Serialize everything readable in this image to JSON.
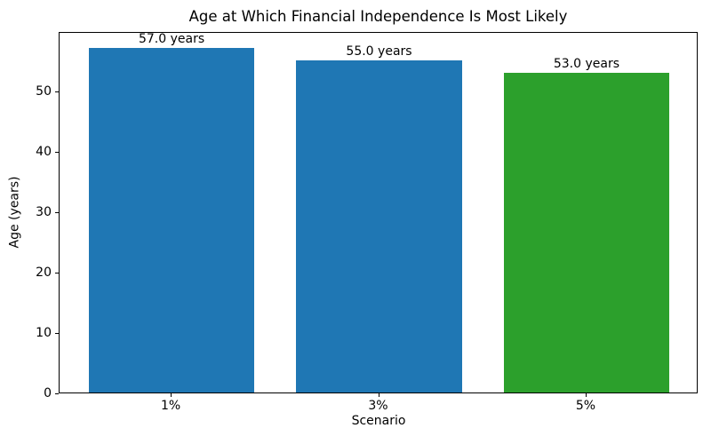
{
  "chart_data": {
    "type": "bar",
    "title": "Age at Which Financial Independence Is Most Likely",
    "xlabel": "Scenario",
    "ylabel": "Age (years)",
    "categories": [
      "1%",
      "3%",
      "5%"
    ],
    "values": [
      57.0,
      55.0,
      53.0
    ],
    "bar_labels": [
      "57.0 years",
      "55.0 years",
      "53.0 years"
    ],
    "bar_colors": [
      "#1f77b4",
      "#1f77b4",
      "#2ca02c"
    ],
    "ylim": [
      0,
      59.85
    ],
    "yticks": [
      0,
      10,
      20,
      30,
      40,
      50
    ],
    "grid": false,
    "legend_position": "none",
    "background_color": "#ffffff",
    "axis_color": "#000000"
  }
}
